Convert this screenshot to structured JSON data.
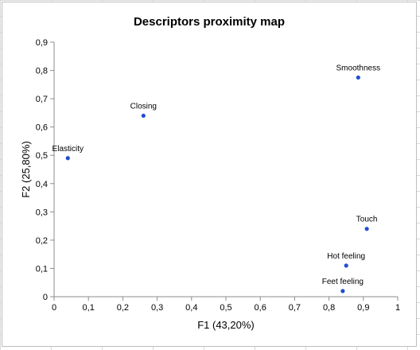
{
  "chart_data": {
    "type": "scatter",
    "title": "Descriptors proximity map",
    "xlabel": "F1 (43,20%)",
    "ylabel": "F2 (25,80%)",
    "xlim": [
      0,
      1
    ],
    "ylim": [
      0,
      0.9
    ],
    "x_ticks": [
      "0",
      "0,1",
      "0,2",
      "0,3",
      "0,4",
      "0,5",
      "0,6",
      "0,7",
      "0,8",
      "0,9",
      "1"
    ],
    "y_ticks": [
      "0",
      "0,1",
      "0,2",
      "0,3",
      "0,4",
      "0,5",
      "0,6",
      "0,7",
      "0,8",
      "0,9"
    ],
    "grid": false,
    "legend": "none",
    "marker_color": "#1f4fd1",
    "points": [
      {
        "label": "Smoothness",
        "x": 0.885,
        "y": 0.775
      },
      {
        "label": "Closing",
        "x": 0.26,
        "y": 0.64
      },
      {
        "label": "Elasticity",
        "x": 0.04,
        "y": 0.49
      },
      {
        "label": "Touch",
        "x": 0.91,
        "y": 0.24
      },
      {
        "label": "Hot feeling",
        "x": 0.85,
        "y": 0.11
      },
      {
        "label": "Feet feeling",
        "x": 0.84,
        "y": 0.02
      }
    ]
  }
}
